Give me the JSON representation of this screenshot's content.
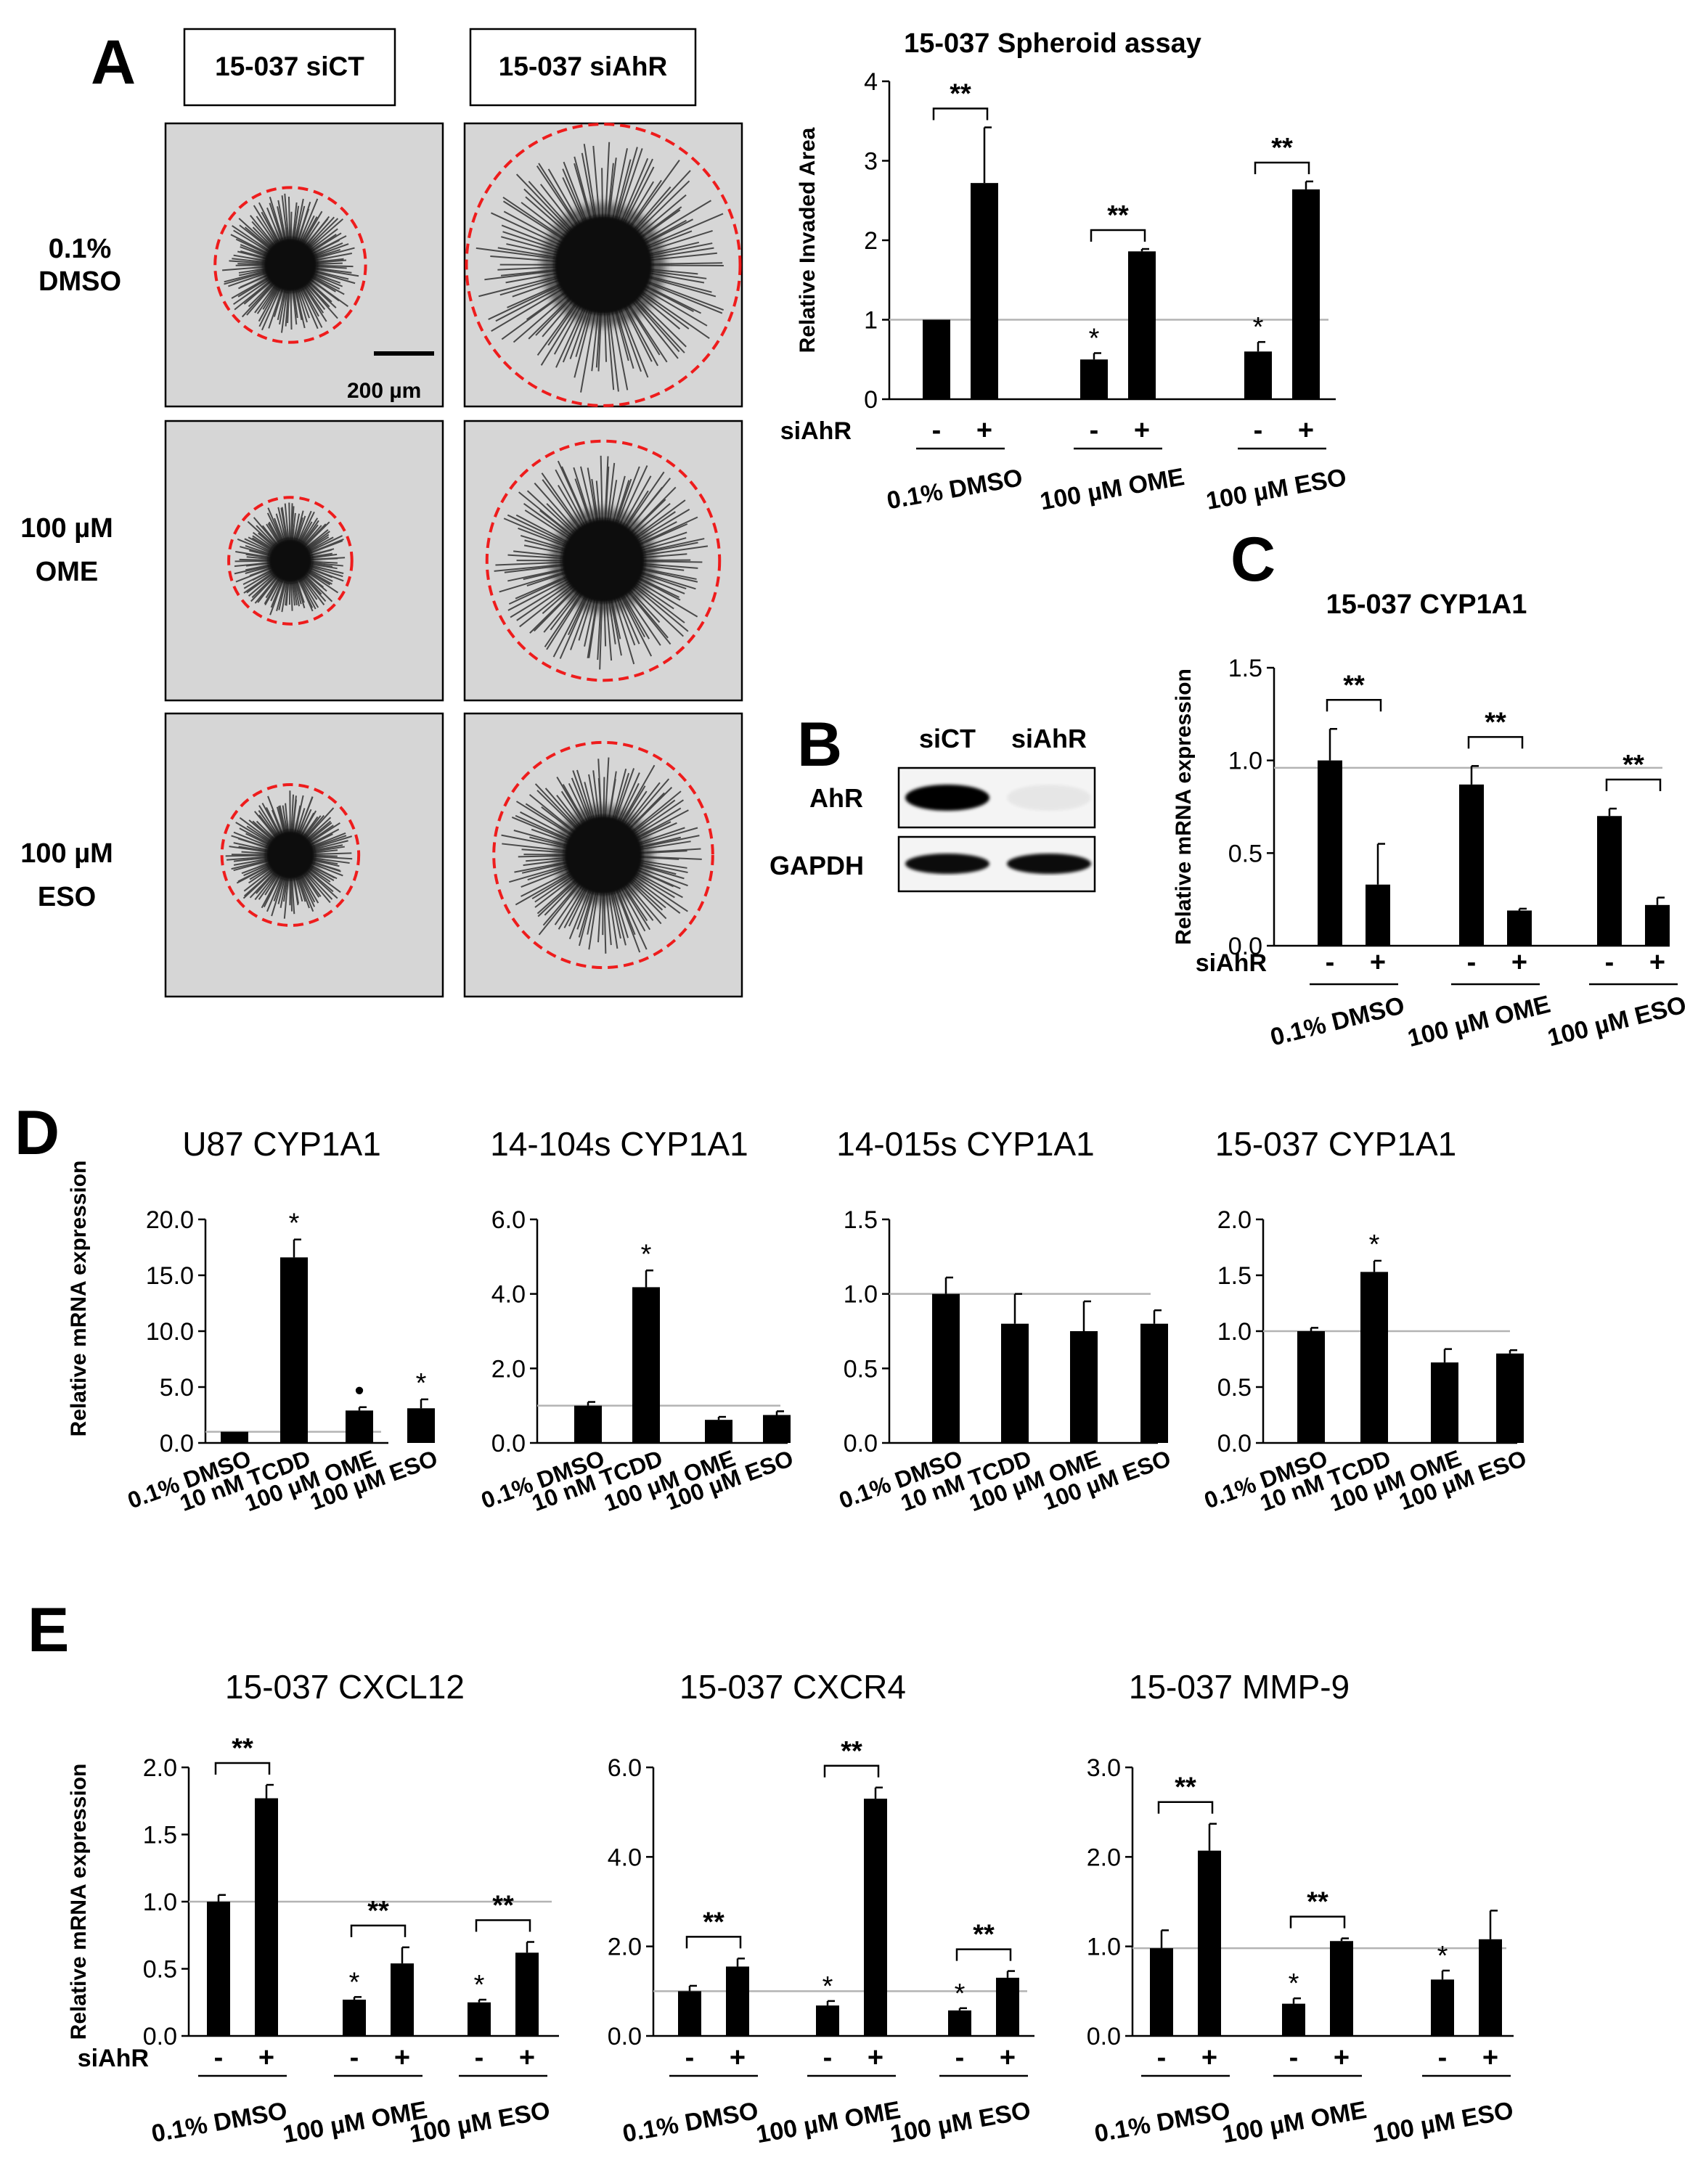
{
  "panelA": {
    "letter": "A",
    "col_labels": [
      "15-037 siCT",
      "15-037 siAhR"
    ],
    "rows": [
      {
        "line1": "0.1%",
        "line2": "DMSO",
        "ct_spread": 0.55,
        "si_spread": 1.0
      },
      {
        "line1": "100 µM",
        "line2": "OME",
        "ct_spread": 0.45,
        "si_spread": 0.85
      },
      {
        "line1": "100 µM",
        "line2": "ESO",
        "ct_spread": 0.5,
        "si_spread": 0.8
      }
    ],
    "scale_bar": "200 µm"
  },
  "panelB": {
    "letter": "B",
    "lanes": [
      "siCT",
      "siAhR"
    ],
    "bands": [
      {
        "label": "AhR",
        "intensity": [
          1.0,
          0.05
        ]
      },
      {
        "label": "GAPDH",
        "intensity": [
          0.95,
          0.95
        ]
      }
    ]
  },
  "panelC": {
    "letter": "C"
  },
  "panelD": {
    "letter": "D"
  },
  "panelE": {
    "letter": "E"
  },
  "colors": {
    "bar": "#000000",
    "ref_line": "#b3b3b3",
    "circle": "#ee1c1c"
  },
  "chart_data": [
    {
      "id": "spheroid",
      "type": "bar",
      "title": "15-037 Spheroid  assay",
      "ylabel": "Relative Invaded  Area",
      "ylim": [
        0,
        4
      ],
      "yticks": [
        "0",
        "1",
        "2",
        "3",
        "4"
      ],
      "groups": [
        "0.1% DMSO",
        "100 µM OME",
        "100 µM ESO"
      ],
      "bar_signs": [
        "-",
        "+"
      ],
      "sign_row_label": "siAhR",
      "series": [
        {
          "name": "siAhR -",
          "values": [
            1.0,
            0.5,
            0.6
          ],
          "errors": [
            0,
            0.08,
            0.12
          ]
        },
        {
          "name": "siAhR +",
          "values": [
            2.72,
            1.86,
            2.64
          ],
          "errors": [
            0.7,
            0.03,
            0.1
          ]
        }
      ],
      "ref_line": 1.0,
      "significance": [
        {
          "group": 0,
          "label": "**"
        },
        {
          "group": 1,
          "label": "**"
        },
        {
          "group": 2,
          "label": "**"
        }
      ],
      "stars": [
        {
          "group": 1,
          "bar": 0,
          "label": "*"
        },
        {
          "group": 2,
          "bar": 0,
          "label": "*"
        }
      ]
    },
    {
      "id": "C",
      "type": "bar",
      "title": "15-037 CYP1A1",
      "ylabel": "Relative mRNA expression",
      "ylim": [
        0,
        1.5
      ],
      "yticks": [
        "0.0",
        "0.5",
        "1.0",
        "1.5"
      ],
      "groups": [
        "0.1% DMSO",
        "100 µM OME",
        "100 µM ESO"
      ],
      "bar_signs": [
        "-",
        "+"
      ],
      "sign_row_label": "siAhR",
      "series": [
        {
          "name": "siAhR -",
          "values": [
            1.0,
            0.87,
            0.7
          ],
          "errors": [
            0.17,
            0.1,
            0.04
          ]
        },
        {
          "name": "siAhR +",
          "values": [
            0.33,
            0.19,
            0.22
          ],
          "errors": [
            0.22,
            0.01,
            0.04
          ]
        }
      ],
      "ref_line": 0.96,
      "significance": [
        {
          "group": 0,
          "label": "**"
        },
        {
          "group": 1,
          "label": "**"
        },
        {
          "group": 2,
          "label": "**"
        }
      ],
      "stars": []
    },
    {
      "id": "D1",
      "type": "bar",
      "title": "U87 CYP1A1",
      "ylabel": "Relative mRNA expression",
      "ylim": [
        0,
        20
      ],
      "yticks": [
        "0.0",
        "5.0",
        "10.0",
        "15.0",
        "20.0"
      ],
      "categories": [
        "0.1% DMSO",
        "10 nM TCDD",
        "100 µM OME",
        "100 µM ESO"
      ],
      "values": [
        1.0,
        16.6,
        2.9,
        3.1
      ],
      "errors": [
        0,
        1.6,
        0.3,
        0.8
      ],
      "ref_line": 1.0,
      "stars": [
        {
          "bar": 1,
          "label": "*"
        },
        {
          "bar": 2,
          "label": "•"
        },
        {
          "bar": 3,
          "label": "*"
        }
      ]
    },
    {
      "id": "D2",
      "type": "bar",
      "title": "14-104s CYP1A1",
      "ylabel": "",
      "ylim": [
        0,
        6
      ],
      "yticks": [
        "0.0",
        "2.0",
        "4.0",
        "6.0"
      ],
      "categories": [
        "0.1% DMSO",
        "10 nM TCDD",
        "100 µM OME",
        "100 µM ESO"
      ],
      "values": [
        1.0,
        4.18,
        0.62,
        0.75
      ],
      "errors": [
        0.1,
        0.45,
        0.08,
        0.1
      ],
      "ref_line": 1.0,
      "stars": [
        {
          "bar": 1,
          "label": "*"
        }
      ]
    },
    {
      "id": "D3",
      "type": "bar",
      "title": "14-015s CYP1A1",
      "ylabel": "",
      "ylim": [
        0,
        1.5
      ],
      "yticks": [
        "0.0",
        "0.5",
        "1.0",
        "1.5"
      ],
      "categories": [
        "0.1% DMSO",
        "10 nM TCDD",
        "100 µM OME",
        "100 µM ESO"
      ],
      "values": [
        1.0,
        0.8,
        0.75,
        0.8
      ],
      "errors": [
        0.11,
        0.2,
        0.2,
        0.09
      ],
      "ref_line": 1.0,
      "stars": []
    },
    {
      "id": "D4",
      "type": "bar",
      "title": "15-037 CYP1A1",
      "ylabel": "",
      "ylim": [
        0,
        2
      ],
      "yticks": [
        "0.0",
        "0.5",
        "1.0",
        "1.5",
        "2.0"
      ],
      "categories": [
        "0.1% DMSO",
        "10 nM TCDD",
        "100 µM OME",
        "100 µM ESO"
      ],
      "values": [
        1.0,
        1.53,
        0.72,
        0.8
      ],
      "errors": [
        0.03,
        0.1,
        0.12,
        0.03
      ],
      "ref_line": 1.0,
      "stars": [
        {
          "bar": 1,
          "label": "*"
        }
      ]
    },
    {
      "id": "E1",
      "type": "bar",
      "title": "15-037 CXCL12",
      "ylabel": "Relative mRNA expression",
      "ylim": [
        0,
        2
      ],
      "yticks": [
        "0.0",
        "0.5",
        "1.0",
        "1.5",
        "2.0"
      ],
      "groups": [
        "0.1% DMSO",
        "100 µM OME",
        "100 µM ESO"
      ],
      "bar_signs": [
        "-",
        "+"
      ],
      "sign_row_label": "siAhR",
      "series": [
        {
          "name": "siAhR -",
          "values": [
            1.0,
            0.27,
            0.25
          ],
          "errors": [
            0.05,
            0.02,
            0.02
          ]
        },
        {
          "name": "siAhR +",
          "values": [
            1.77,
            0.54,
            0.62
          ],
          "errors": [
            0.1,
            0.12,
            0.08
          ]
        }
      ],
      "ref_line": 1.0,
      "significance": [
        {
          "group": 0,
          "label": "**"
        },
        {
          "group": 1,
          "label": "**"
        },
        {
          "group": 2,
          "label": "**"
        }
      ],
      "stars": [
        {
          "group": 1,
          "bar": 0,
          "label": "*"
        },
        {
          "group": 2,
          "bar": 0,
          "label": "*"
        }
      ]
    },
    {
      "id": "E2",
      "type": "bar",
      "title": "15-037 CXCR4",
      "ylabel": "",
      "ylim": [
        0,
        6
      ],
      "yticks": [
        "0.0",
        "2.0",
        "4.0",
        "6.0"
      ],
      "groups": [
        "0.1% DMSO",
        "100 µM OME",
        "100 µM ESO"
      ],
      "bar_signs": [
        "-",
        "+"
      ],
      "sign_row_label": "",
      "series": [
        {
          "name": "siAhR -",
          "values": [
            1.0,
            0.68,
            0.57
          ],
          "errors": [
            0.12,
            0.1,
            0.05
          ]
        },
        {
          "name": "siAhR +",
          "values": [
            1.55,
            5.3,
            1.3
          ],
          "errors": [
            0.18,
            0.25,
            0.15
          ]
        }
      ],
      "ref_line": 1.0,
      "significance": [
        {
          "group": 0,
          "label": "**"
        },
        {
          "group": 1,
          "label": "**"
        },
        {
          "group": 2,
          "label": "**"
        }
      ],
      "stars": [
        {
          "group": 1,
          "bar": 0,
          "label": "*"
        },
        {
          "group": 2,
          "bar": 0,
          "label": "*"
        }
      ]
    },
    {
      "id": "E3",
      "type": "bar",
      "title": "15-037 MMP-9",
      "ylabel": "",
      "ylim": [
        0,
        3
      ],
      "yticks": [
        "0.0",
        "1.0",
        "2.0",
        "3.0"
      ],
      "groups": [
        "0.1% DMSO",
        "100 µM OME",
        "100 µM ESO"
      ],
      "bar_signs": [
        "-",
        "+"
      ],
      "sign_row_label": "",
      "series": [
        {
          "name": "siAhR -",
          "values": [
            0.98,
            0.36,
            0.63
          ],
          "errors": [
            0.2,
            0.06,
            0.1
          ]
        },
        {
          "name": "siAhR +",
          "values": [
            2.07,
            1.06,
            1.08
          ],
          "errors": [
            0.3,
            0.03,
            0.32
          ]
        }
      ],
      "ref_line": 0.98,
      "significance": [
        {
          "group": 0,
          "label": "**"
        },
        {
          "group": 1,
          "label": "**"
        }
      ],
      "stars": [
        {
          "group": 1,
          "bar": 0,
          "label": "*"
        },
        {
          "group": 2,
          "bar": 0,
          "label": "*"
        }
      ]
    }
  ]
}
